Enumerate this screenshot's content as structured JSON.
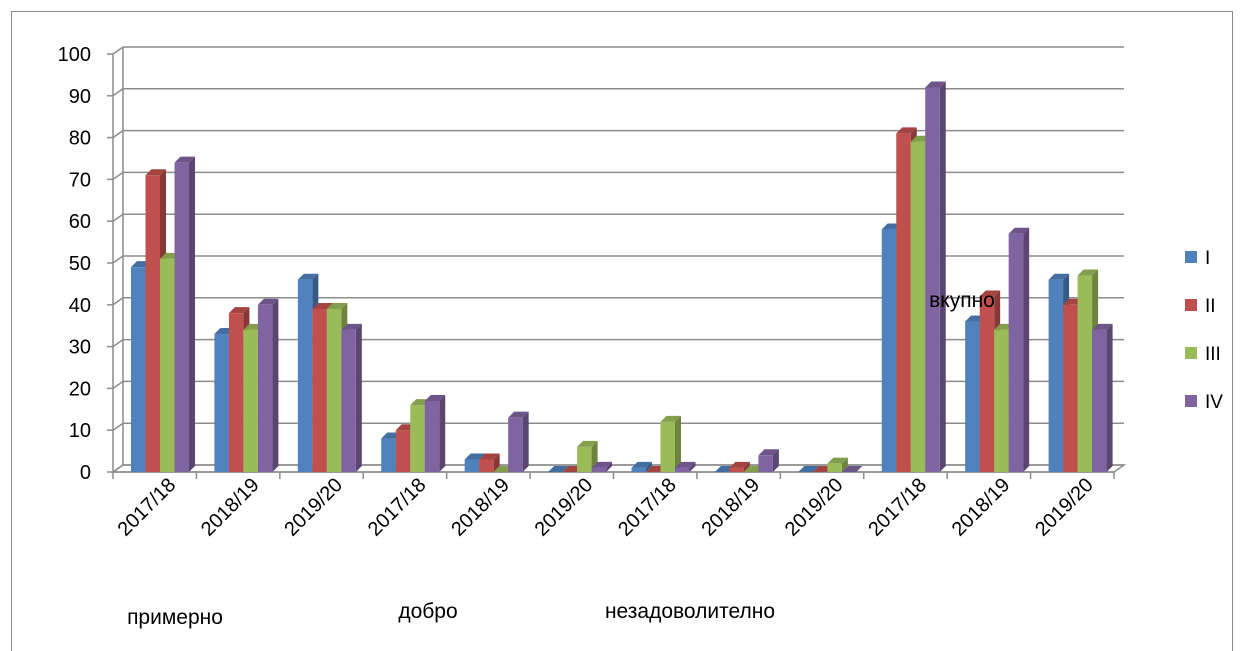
{
  "chart_data": {
    "type": "bar",
    "categories": [
      "2017/18",
      "2018/19",
      "2019/20",
      "2017/18",
      "2018/19",
      "2019/20",
      "2017/18",
      "2018/19",
      "2019/20",
      "2017/18",
      "2018/19",
      "2019/20"
    ],
    "groups": [
      "примерно",
      "добро",
      "незадоволително",
      "вкупно"
    ],
    "series": [
      {
        "name": "I",
        "color": "#4F81BD",
        "values": [
          49,
          33,
          46,
          8,
          3,
          0,
          1,
          0,
          0,
          58,
          36,
          46
        ]
      },
      {
        "name": "II",
        "color": "#C0504D",
        "values": [
          71,
          38,
          39,
          10,
          3,
          0,
          0,
          1,
          0,
          81,
          42,
          40
        ]
      },
      {
        "name": "III",
        "color": "#9BBB59",
        "values": [
          51,
          34,
          39,
          16,
          0,
          6,
          12,
          0,
          2,
          79,
          34,
          47
        ]
      },
      {
        "name": "IV",
        "color": "#8064A2",
        "values": [
          74,
          40,
          34,
          17,
          13,
          1,
          1,
          4,
          0,
          92,
          57,
          34
        ]
      }
    ],
    "yticks": [
      "0",
      "10",
      "20",
      "30",
      "40",
      "50",
      "60",
      "70",
      "80",
      "90",
      "100"
    ],
    "ylim": [
      0,
      100
    ],
    "grid": true,
    "legend_position": "right"
  }
}
